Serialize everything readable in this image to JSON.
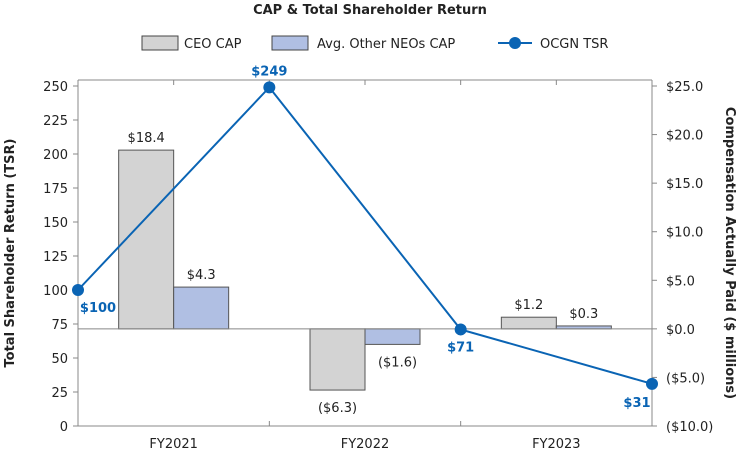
{
  "chart_data": {
    "type": "bar+line",
    "title": "CAP & Total Shareholder Return",
    "categories": [
      "FY2021",
      "FY2022",
      "FY2023"
    ],
    "series": [
      {
        "name": "CEO CAP",
        "type": "bar",
        "axis": "right",
        "values": [
          18.4,
          -6.3,
          1.2
        ],
        "labels": [
          "$18.4",
          "($6.3)",
          "$1.2"
        ],
        "color": "#d3d3d3"
      },
      {
        "name": "Avg. Other NEOs CAP",
        "type": "bar",
        "axis": "right",
        "values": [
          4.3,
          -1.6,
          0.3
        ],
        "labels": [
          "$4.3",
          "($1.6)",
          "$0.3"
        ],
        "color": "#b0bfe3"
      },
      {
        "name": "OCGN TSR",
        "type": "line",
        "axis": "left",
        "x": [
          "start",
          "FY2021",
          "FY2022",
          "FY2023"
        ],
        "values": [
          100,
          249,
          71,
          31
        ],
        "labels": [
          "$100",
          "$249",
          "$71",
          "$31"
        ],
        "color": "#0a64b4"
      }
    ],
    "ylabel_left": "Total Shareholder Return (TSR)",
    "ylim_left": [
      0,
      250
    ],
    "yticks_left": [
      "0",
      "25",
      "50",
      "75",
      "100",
      "125",
      "150",
      "175",
      "200",
      "225",
      "250"
    ],
    "ylabel_right": "Compensation Actually Paid ($ millions)",
    "ylim_right": [
      -10,
      25
    ],
    "yticks_right": [
      "($10.0)",
      "($5.0)",
      "$0.0",
      "$5.0",
      "$10.0",
      "$15.0",
      "$20.0",
      "$25.0"
    ],
    "legend_position": "top",
    "grid": false
  }
}
